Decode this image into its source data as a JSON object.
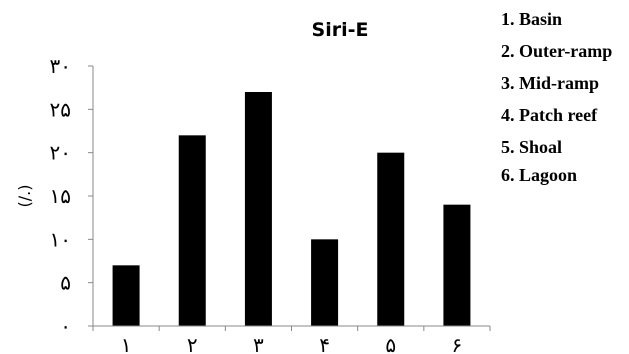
{
  "chart_data": {
    "type": "bar",
    "title": "Siri-E",
    "ylabel": "(/.)",
    "xlabel": "",
    "categories": [
      "١",
      "٢",
      "٣",
      "۴",
      "۵",
      "۶"
    ],
    "values": [
      7,
      22,
      27,
      10,
      20,
      14
    ],
    "ylim": [
      0,
      30
    ],
    "yticks": [
      {
        "value": 0,
        "label": "٠"
      },
      {
        "value": 5,
        "label": "۵"
      },
      {
        "value": 10,
        "label": "١٠"
      },
      {
        "value": 15,
        "label": "١۵"
      },
      {
        "value": 20,
        "label": "٢٠"
      },
      {
        "value": 25,
        "label": "٢۵"
      },
      {
        "value": 30,
        "label": "٣٠"
      }
    ],
    "bar_color": "#000000",
    "grid": false,
    "legend": {
      "placement": "right",
      "entries": [
        "1. Basin",
        "2. Outer-ramp",
        "3. Mid-ramp",
        "4. Patch reef",
        "5. Shoal",
        "6. Lagoon"
      ]
    }
  }
}
